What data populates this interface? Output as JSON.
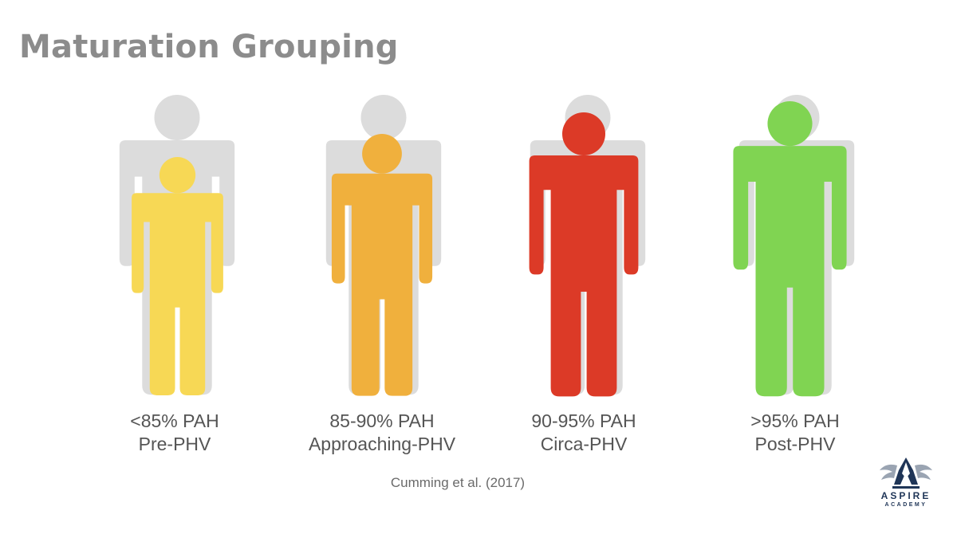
{
  "slide": {
    "title": "Maturation Grouping",
    "citation": "Cumming et al. (2017)"
  },
  "groups": [
    {
      "line1": "<85% PAH",
      "line2": "Pre-PHV",
      "color": "#f7d855",
      "maturity_percent": 85
    },
    {
      "line1": "85-90% PAH",
      "line2": "Approaching-PHV",
      "color": "#f0b03d",
      "maturity_percent": 88
    },
    {
      "line1": "90-95% PAH",
      "line2": "Circa-PHV",
      "color": "#dc3a27",
      "maturity_percent": 93
    },
    {
      "line1": ">95% PAH",
      "line2": "Post-PHV",
      "color": "#80d452",
      "maturity_percent": 98
    }
  ],
  "silhouette_color": "#dcdcdc",
  "logo": {
    "name": "ASPIRE",
    "sub": "ACADEMY",
    "brand_color": "#1f3557"
  }
}
